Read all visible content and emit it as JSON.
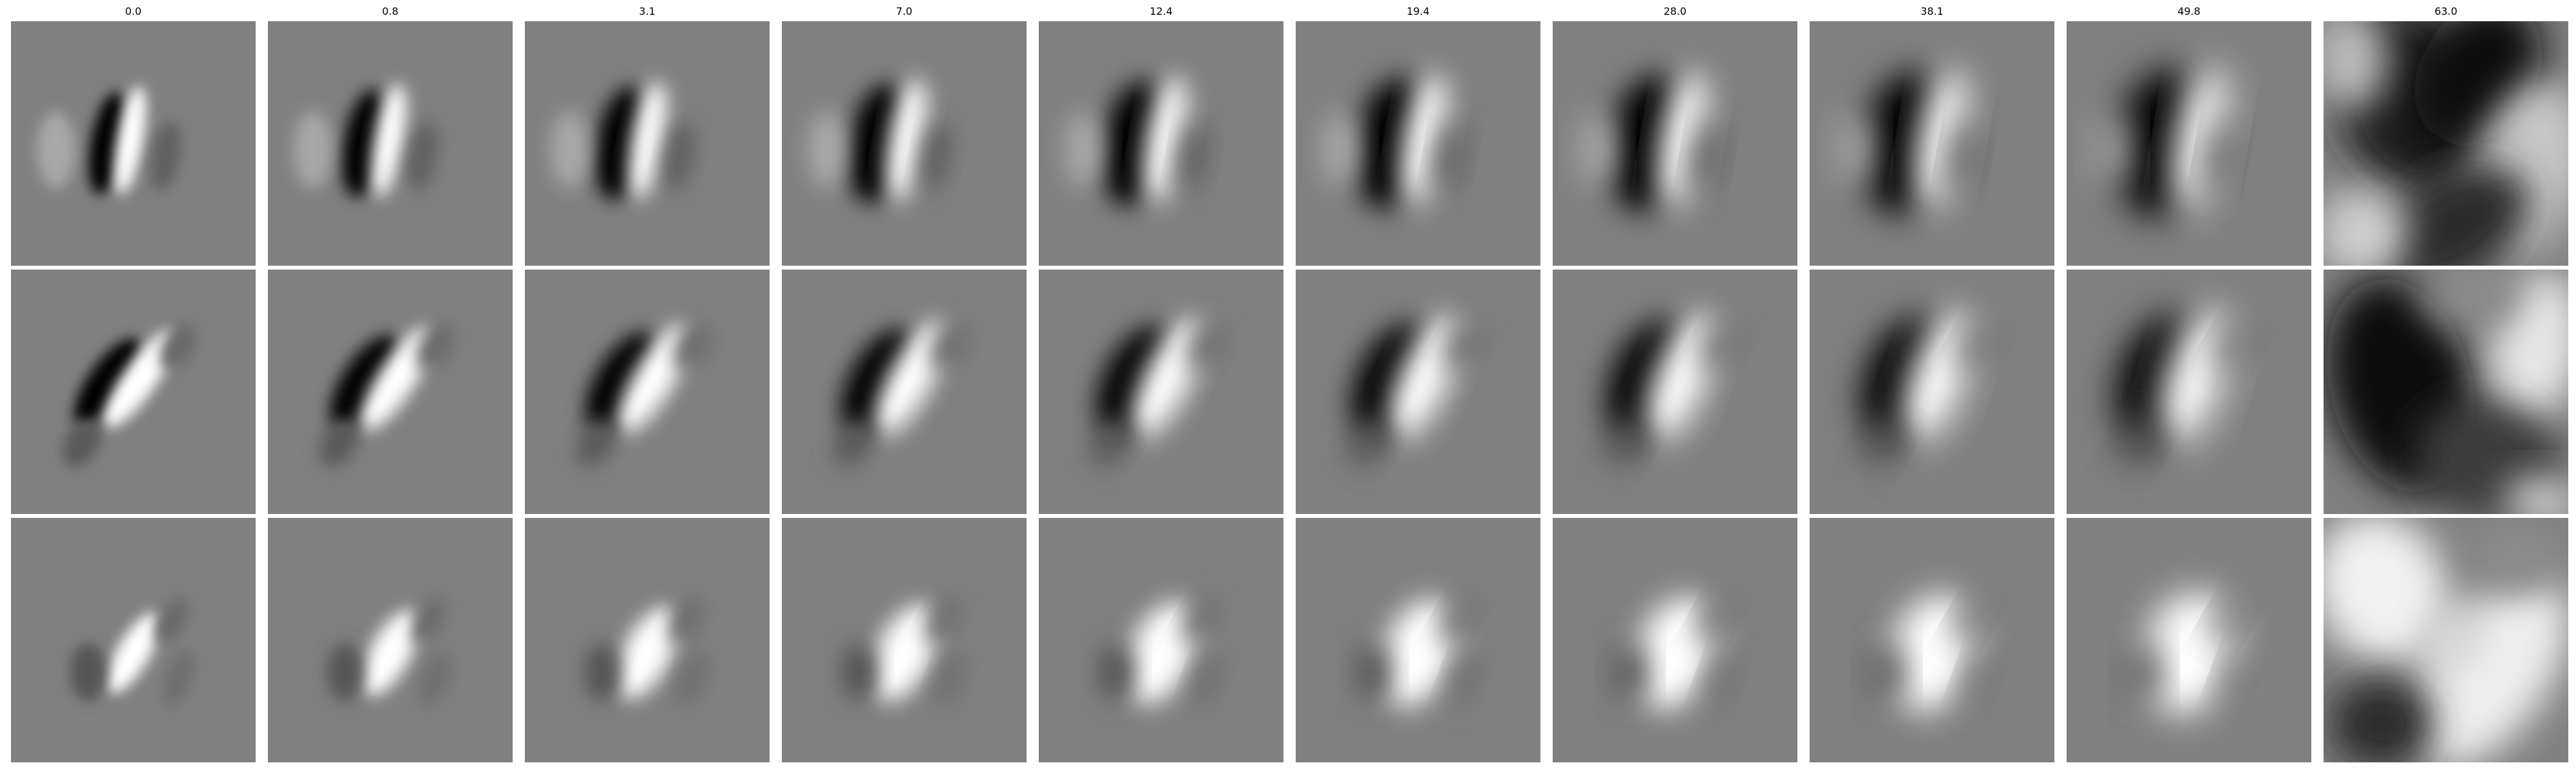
{
  "figure": {
    "column_titles": [
      "0.0",
      "0.8",
      "3.1",
      "7.0",
      "12.4",
      "19.4",
      "28.0",
      "38.1",
      "49.8",
      "63.0"
    ],
    "row_count": 3,
    "background_gray": "#808080",
    "description_by_row": [
      "row-1-vertical-dark-light-pair",
      "row-2-diagonal-dark-light-pair",
      "row-3-diagonal-light-blob"
    ]
  }
}
